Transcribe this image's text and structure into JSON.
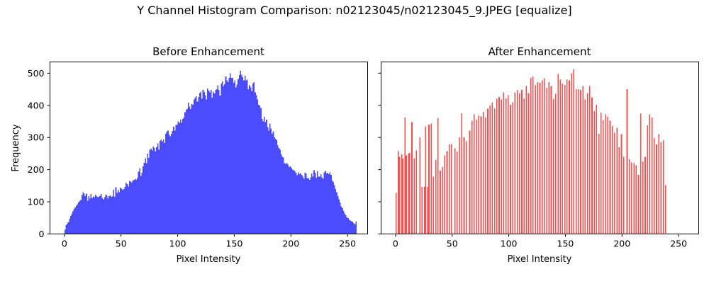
{
  "figure": {
    "suptitle": "Y Channel Histogram Comparison: n02123045/n02123045_9.JPEG [equalize]"
  },
  "chart_data": [
    {
      "type": "bar",
      "title": "Before Enhancement",
      "xlabel": "Pixel Intensity",
      "ylabel": "Frequency",
      "xlim": [
        -12.75,
        267.75
      ],
      "ylim": [
        0,
        535
      ],
      "xticks": [
        0,
        50,
        100,
        150,
        200,
        250
      ],
      "yticks": [
        0,
        100,
        200,
        300,
        400,
        500
      ],
      "color": "#4b4bff",
      "bin_width": 1,
      "x_start": 0,
      "values": [
        13,
        27,
        32,
        36,
        47,
        56,
        63,
        71,
        77,
        83,
        88,
        93,
        98,
        102,
        106,
        121,
        130,
        125,
        118,
        126,
        104,
        118,
        110,
        124,
        112,
        117,
        114,
        122,
        118,
        115,
        117,
        119,
        124,
        112,
        108,
        114,
        122,
        120,
        110,
        118,
        120,
        116,
        117,
        138,
        116,
        145,
        128,
        136,
        130,
        144,
        141,
        137,
        140,
        146,
        160,
        155,
        148,
        165,
        163,
        160,
        166,
        168,
        172,
        168,
        174,
        194,
        205,
        180,
        191,
        210,
        221,
        236,
        220,
        250,
        237,
        262,
        265,
        260,
        272,
        268,
        256,
        270,
        282,
        262,
        290,
        294,
        288,
        294,
        283,
        312,
        318,
        322,
        309,
        304,
        312,
        320,
        334,
        322,
        340,
        339,
        350,
        346,
        356,
        346,
        358,
        362,
        379,
        386,
        390,
        408,
        396,
        389,
        404,
        402,
        418,
        424,
        428,
        412,
        426,
        438,
        442,
        420,
        448,
        441,
        432,
        418,
        452,
        446,
        440,
        448,
        424,
        442,
        437,
        448,
        450,
        462,
        448,
        430,
        468,
        474,
        460,
        466,
        490,
        478,
        472,
        485,
        500,
        485,
        486,
        470,
        478,
        456,
        465,
        482,
        494,
        508,
        495,
        488,
        478,
        492,
        478,
        480,
        450,
        462,
        456,
        444,
        468,
        472,
        440,
        432,
        418,
        402,
        400,
        392,
        358,
        350,
        364,
        348,
        356,
        332,
        322,
        344,
        328,
        312,
        318,
        300,
        296,
        292,
        276,
        268,
        262,
        248,
        240,
        238,
        220,
        218,
        220,
        216,
        208,
        210,
        205,
        200,
        198,
        196,
        190,
        183,
        192,
        186,
        189,
        184,
        178,
        172,
        190,
        188,
        174,
        173,
        168,
        176,
        188,
        178,
        198,
        190,
        175,
        196,
        178,
        178,
        186,
        176,
        172,
        192,
        196,
        188,
        190,
        186,
        192,
        184,
        166,
        162,
        152,
        140,
        130,
        118,
        108,
        98,
        86,
        80,
        72,
        64,
        58,
        52,
        50,
        44,
        42,
        40,
        38,
        34,
        30,
        38
      ]
    },
    {
      "type": "bar",
      "title": "After Enhancement",
      "xlabel": "Pixel Intensity",
      "xlim": [
        -12.75,
        267.75
      ],
      "ylim": [
        0,
        535
      ],
      "xticks": [
        0,
        50,
        100,
        150,
        200,
        250
      ],
      "yticks": [
        0,
        100,
        200,
        300,
        400,
        500
      ],
      "color": "#ff4b4b",
      "bin_width": 1,
      "x_start": 0,
      "values": [
        128,
        0,
        258,
        240,
        0,
        248,
        235,
        0,
        362,
        244,
        0,
        250,
        253,
        0,
        348,
        0,
        236,
        0,
        260,
        0,
        0,
        300,
        0,
        146,
        0,
        148,
        335,
        0,
        146,
        340,
        0,
        344,
        0,
        178,
        0,
        230,
        0,
        360,
        0,
        197,
        0,
        208,
        0,
        244,
        0,
        258,
        0,
        278,
        0,
        280,
        0,
        0,
        266,
        0,
        256,
        0,
        300,
        0,
        375,
        0,
        300,
        0,
        288,
        0,
        0,
        322,
        0,
        352,
        0,
        372,
        0,
        356,
        0,
        369,
        0,
        366,
        0,
        380,
        0,
        362,
        0,
        390,
        0,
        400,
        0,
        408,
        0,
        390,
        0,
        420,
        0,
        426,
        0,
        418,
        0,
        440,
        0,
        422,
        0,
        432,
        0,
        402,
        0,
        410,
        0,
        440,
        0,
        448,
        0,
        438,
        0,
        448,
        0,
        422,
        0,
        460,
        0,
        438,
        0,
        486,
        0,
        490,
        0,
        462,
        0,
        472,
        0,
        470,
        0,
        478,
        0,
        484,
        0,
        455,
        0,
        472,
        0,
        460,
        0,
        420,
        0,
        436,
        0,
        498,
        0,
        480,
        0,
        468,
        0,
        463,
        0,
        480,
        0,
        478,
        0,
        500,
        0,
        512,
        0,
        450,
        0,
        450,
        0,
        448,
        0,
        460,
        0,
        418,
        0,
        438,
        0,
        460,
        0,
        425,
        0,
        382,
        0,
        402,
        0,
        312,
        0,
        378,
        0,
        354,
        0,
        372,
        0,
        364,
        0,
        352,
        0,
        336,
        0,
        315,
        0,
        330,
        0,
        270,
        0,
        310,
        0,
        240,
        0,
        0,
        450,
        0,
        232,
        0,
        222,
        0,
        220,
        0,
        214,
        0,
        184,
        0,
        374,
        0,
        226,
        0,
        240,
        0,
        338,
        0,
        372,
        0,
        362,
        0,
        298,
        0,
        278,
        0,
        310,
        0,
        285,
        0,
        292,
        0,
        152
      ]
    }
  ]
}
